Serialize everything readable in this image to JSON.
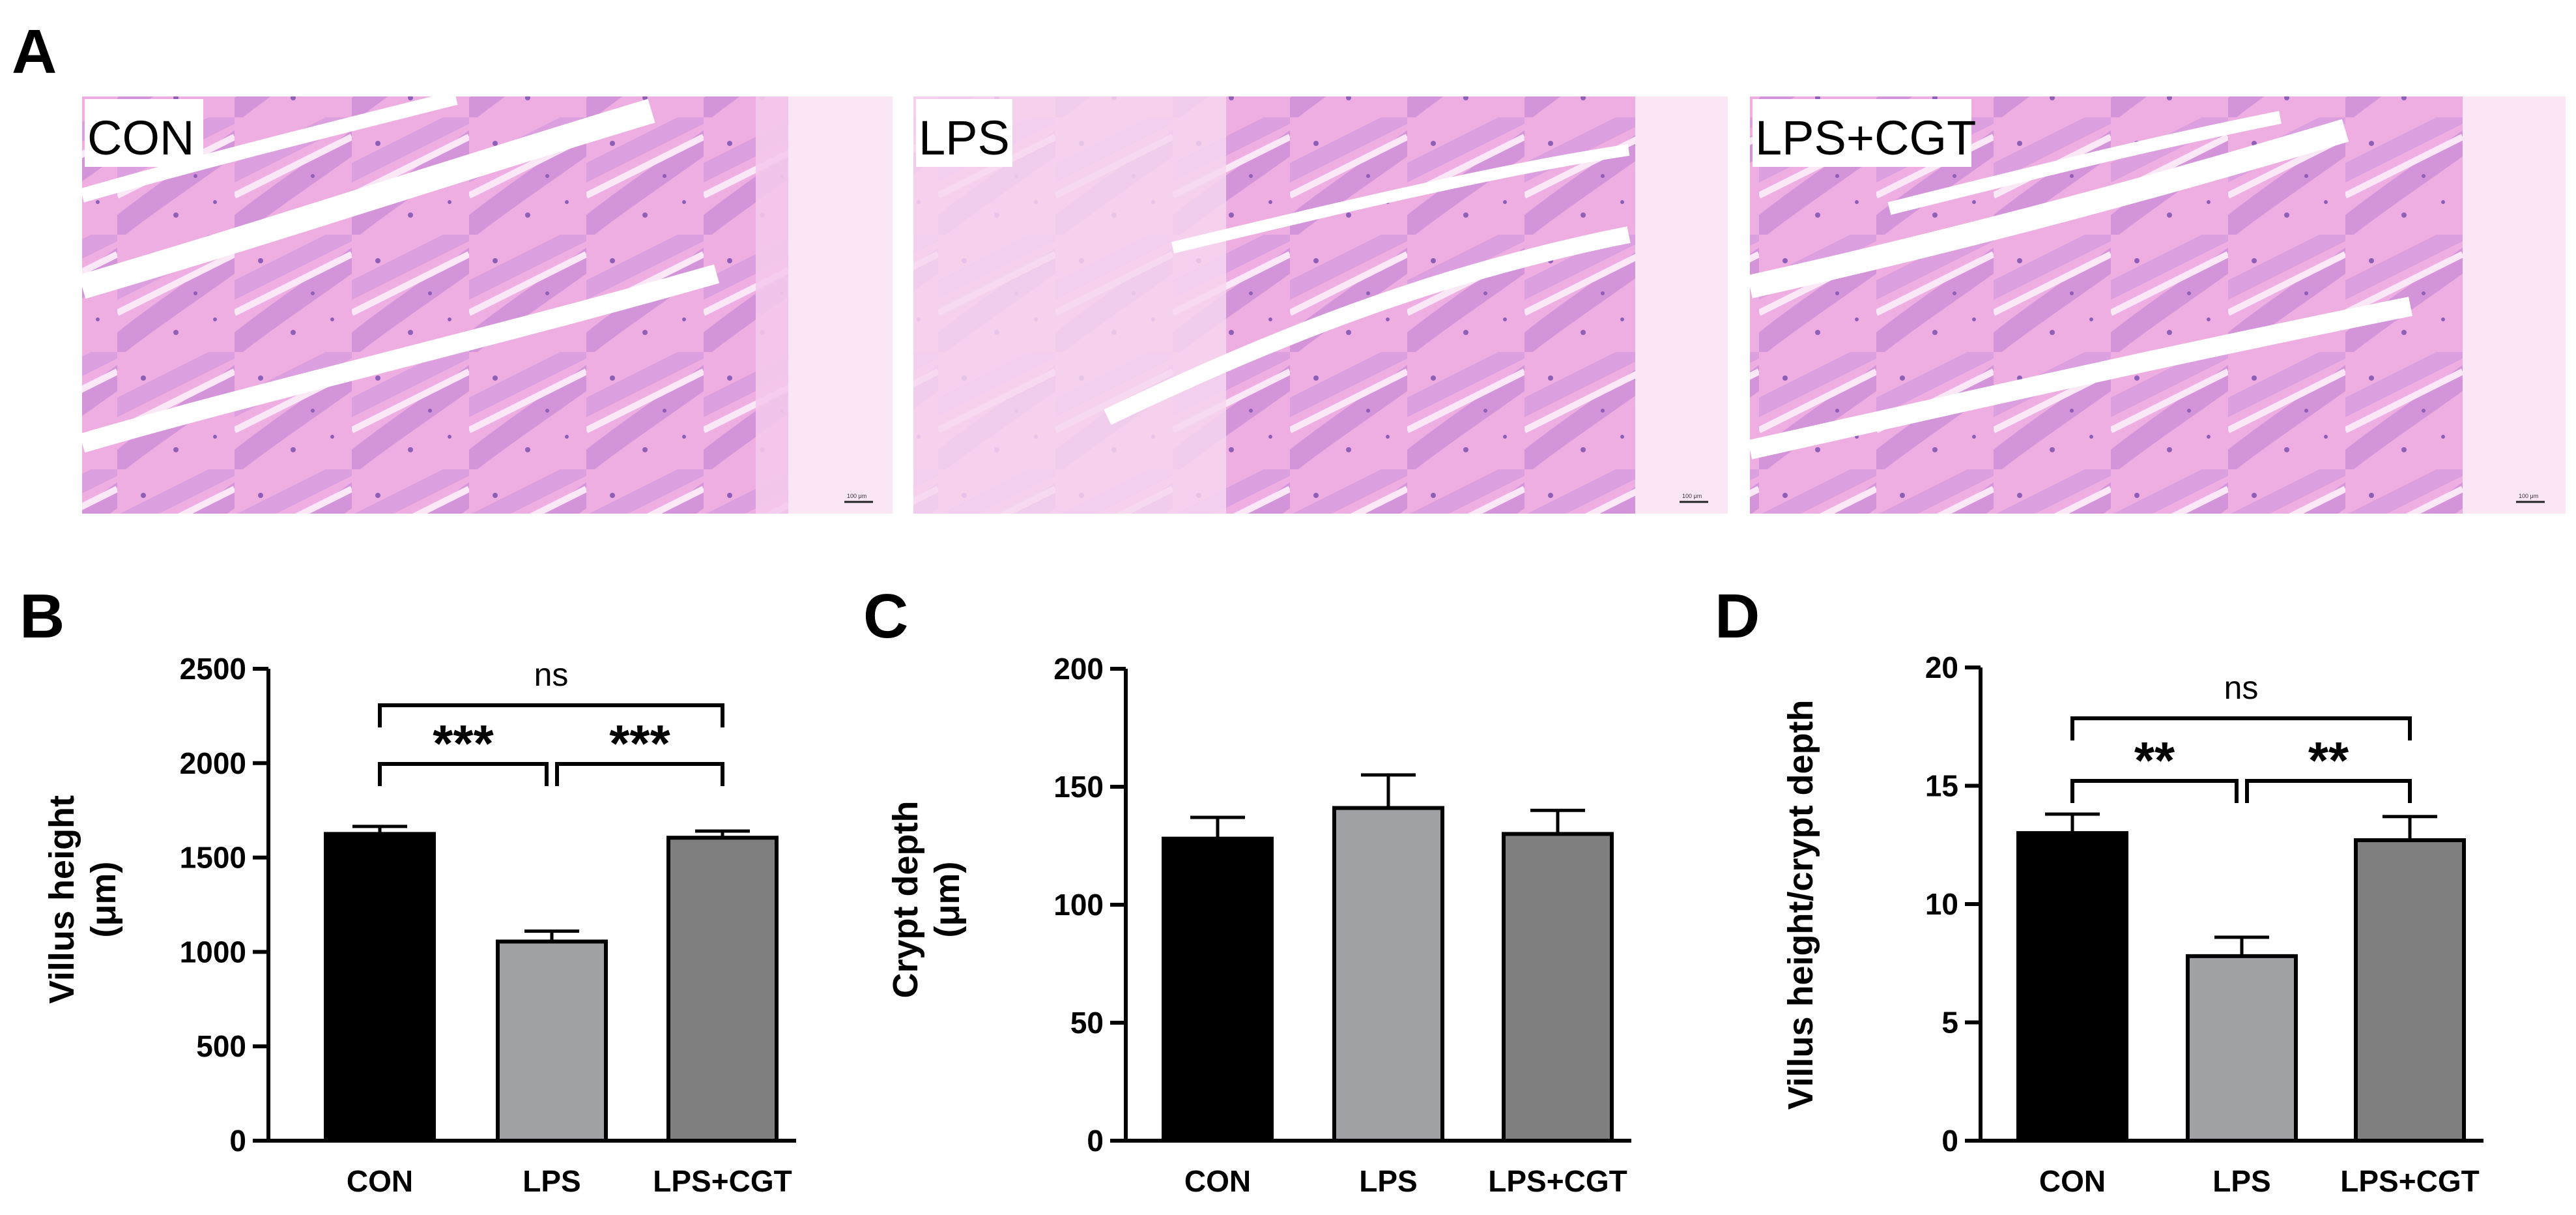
{
  "panels": {
    "A": "A",
    "B": "B",
    "C": "C",
    "D": "D"
  },
  "micrographs": [
    {
      "label": "CON",
      "scale_text": "100 μm"
    },
    {
      "label": "LPS",
      "scale_text": "100 μm"
    },
    {
      "label": "LPS+CGT",
      "scale_text": "100 μm"
    }
  ],
  "colors": {
    "CON": "#000000",
    "LPS": "#a0a1a5",
    "LPS+CGT": "#7f7f7f",
    "tissue_light": "#f2b6e6",
    "tissue_mid": "#d98cd6",
    "tissue_dark": "#9a70c4"
  },
  "chart_data": [
    {
      "type": "bar",
      "panel": "B",
      "categories": [
        "CON",
        "LPS",
        "LPS+CGT"
      ],
      "values": [
        1625,
        1055,
        1605
      ],
      "errors": [
        40,
        55,
        35
      ],
      "ylabel": "Villus height (μm)",
      "ylabel_lines": [
        "Villus height",
        "(μm)"
      ],
      "ylim": [
        0,
        2500
      ],
      "yticks": [
        "0",
        "500",
        "1000",
        "1500",
        "2000",
        "2500"
      ],
      "comparisons": [
        {
          "from": 0,
          "to": 1,
          "label": "***",
          "level": 1
        },
        {
          "from": 1,
          "to": 2,
          "label": "***",
          "level": 1
        },
        {
          "from": 0,
          "to": 2,
          "label": "ns",
          "level": 2
        }
      ]
    },
    {
      "type": "bar",
      "panel": "C",
      "categories": [
        "CON",
        "LPS",
        "LPS+CGT"
      ],
      "values": [
        128,
        141,
        130
      ],
      "errors": [
        9,
        14,
        10
      ],
      "ylabel": "Crypt depth (μm)",
      "ylabel_lines": [
        "Crypt depth",
        "(μm)"
      ],
      "ylim": [
        0,
        200
      ],
      "yticks": [
        "0",
        "50",
        "100",
        "150",
        "200"
      ],
      "comparisons": []
    },
    {
      "type": "bar",
      "panel": "D",
      "categories": [
        "CON",
        "LPS",
        "LPS+CGT"
      ],
      "values": [
        13.0,
        7.8,
        12.7
      ],
      "errors": [
        0.8,
        0.8,
        1.0
      ],
      "ylabel": "Villus height/crypt depth",
      "ylabel_lines": [
        "Villus height/crypt depth"
      ],
      "ylim": [
        0,
        20
      ],
      "yticks": [
        "0",
        "5",
        "10",
        "15",
        "20"
      ],
      "comparisons": [
        {
          "from": 0,
          "to": 1,
          "label": "**",
          "level": 1
        },
        {
          "from": 1,
          "to": 2,
          "label": "**",
          "level": 1
        },
        {
          "from": 0,
          "to": 2,
          "label": "ns",
          "level": 2
        }
      ]
    }
  ]
}
